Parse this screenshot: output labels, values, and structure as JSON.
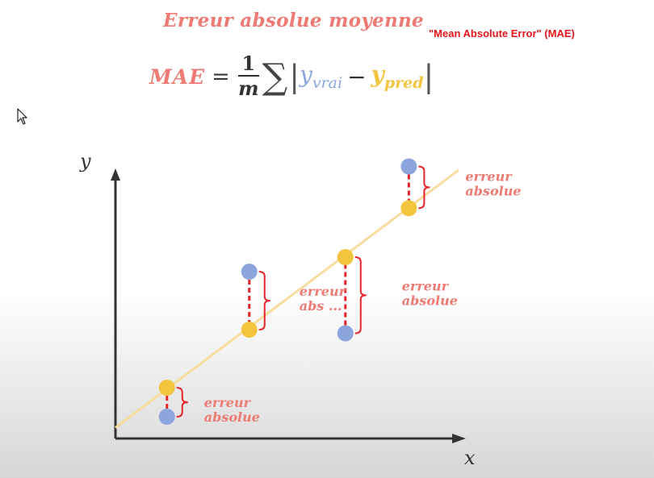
{
  "header": {
    "title": "Erreur absolue moyenne",
    "subtitle": "\"Mean Absolute Error\" (MAE)"
  },
  "formula": {
    "lhs": "MAE",
    "equals": "=",
    "numerator": "1",
    "denominator": "m",
    "sum_symbol": "∑",
    "abs_bar": "|",
    "y_true": "y",
    "y_true_sub": "vrai",
    "minus": "−",
    "y_pred": "y",
    "y_pred_sub": "pred"
  },
  "colors": {
    "accent": "#ef7a74",
    "true_point": "#8ca6dd",
    "pred_point": "#f3c43e",
    "regression_line": "#f7dc9e",
    "error_segment": "#e8242b",
    "subtitle": "#e8141b"
  },
  "chart_data": {
    "type": "scatter",
    "xlabel": "x",
    "ylabel": "y",
    "regression_line": {
      "x": [
        0,
        10
      ],
      "y": [
        0.3,
        7.4
      ]
    },
    "points": [
      {
        "x": 1.5,
        "y_true": 0.6,
        "y_pred": 1.4,
        "error_label": "erreur absolue"
      },
      {
        "x": 3.9,
        "y_true": 4.6,
        "y_pred": 3.0,
        "error_label": "erreur abs ..."
      },
      {
        "x": 6.7,
        "y_true": 2.9,
        "y_pred": 5.0,
        "error_label": "erreur absolue"
      },
      {
        "x": 8.55,
        "y_true": 7.5,
        "y_pred": 6.35,
        "error_label": "erreur absolue"
      }
    ]
  }
}
